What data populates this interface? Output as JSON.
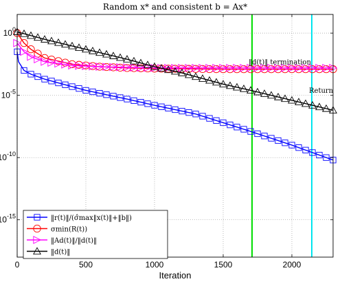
{
  "chart_data": {
    "type": "line",
    "title": "Random x* and consistent b = Ax*",
    "xlabel": "Iteration",
    "ylabel": "",
    "xlim": [
      0,
      2300
    ],
    "ylim_exponent": [
      -18,
      1.5
    ],
    "y_scale": "log",
    "grid": true,
    "x_ticks": [
      0,
      500,
      1000,
      1500,
      2000
    ],
    "y_ticks": [
      {
        "exp": 0,
        "label": "10^0"
      },
      {
        "exp": -5,
        "label": "10^-5"
      },
      {
        "exp": -10,
        "label": "10^-10"
      },
      {
        "exp": -15,
        "label": "10^-15"
      }
    ],
    "vlines": [
      {
        "x": 1710,
        "color": "#00dd00"
      },
      {
        "x": 2145,
        "color": "#00e5ee"
      }
    ],
    "annotations": [
      {
        "text": "‖d(t)‖ termination",
        "x": 1700,
        "y_exp": -2.5
      },
      {
        "text": "Return",
        "x": 2140,
        "y_exp": -4.8
      }
    ],
    "legend_position": "bottom-left",
    "series": [
      {
        "name": "‖r(t)‖/(σ̂max‖x(t)‖+‖b‖)",
        "color": "#0000ff",
        "marker": "square",
        "x": [
          0,
          10,
          50,
          100,
          200,
          300,
          500,
          800,
          1000,
          1300,
          1500,
          1700,
          2000,
          2300
        ],
        "y_exp": [
          -1.5,
          -2.3,
          -3.0,
          -3.3,
          -3.7,
          -4.0,
          -4.6,
          -5.3,
          -5.8,
          -6.5,
          -7.2,
          -7.9,
          -9.0,
          -10.2
        ]
      },
      {
        "name": "σmin(R(t))",
        "color": "#ff0000",
        "marker": "circle",
        "x": [
          0,
          50,
          100,
          200,
          400,
          600,
          800,
          1000,
          1500,
          2000,
          2300
        ],
        "y_exp": [
          0.0,
          -0.8,
          -1.3,
          -2.0,
          -2.5,
          -2.7,
          -2.8,
          -2.85,
          -2.9,
          -2.9,
          -2.9
        ]
      },
      {
        "name": "‖Ad(t)‖/‖d(t)‖",
        "color": "#ff00ff",
        "marker": "triangle-right",
        "x": [
          0,
          50,
          100,
          200,
          400,
          600,
          800,
          1000,
          1500,
          2000,
          2300
        ],
        "y_exp": [
          -0.8,
          -1.5,
          -1.9,
          -2.3,
          -2.6,
          -2.7,
          -2.75,
          -2.8,
          -2.8,
          -2.8,
          -2.8
        ]
      },
      {
        "name": "‖d(t)‖",
        "color": "#000000",
        "marker": "triangle-up",
        "x": [
          0,
          200,
          500,
          800,
          1000,
          1200,
          1500,
          1700,
          2000,
          2300
        ],
        "y_exp": [
          0.1,
          -0.5,
          -1.3,
          -2.1,
          -2.7,
          -3.2,
          -4.1,
          -4.6,
          -5.4,
          -6.2
        ]
      }
    ]
  }
}
